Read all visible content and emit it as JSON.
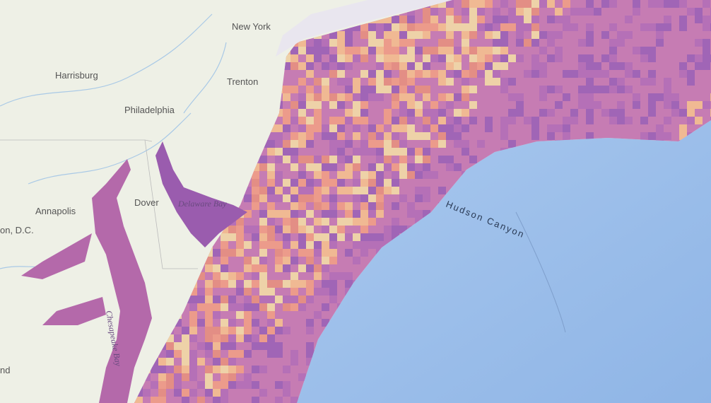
{
  "cities": [
    "New York",
    "Harrisburg",
    "Trenton",
    "Philadelphia",
    "Annapolis",
    "Dover",
    "on, D.C.",
    "nd"
  ],
  "water": [
    "Delaware Bay",
    "Chesapeake Bay",
    "Hudson Canyon"
  ]
}
